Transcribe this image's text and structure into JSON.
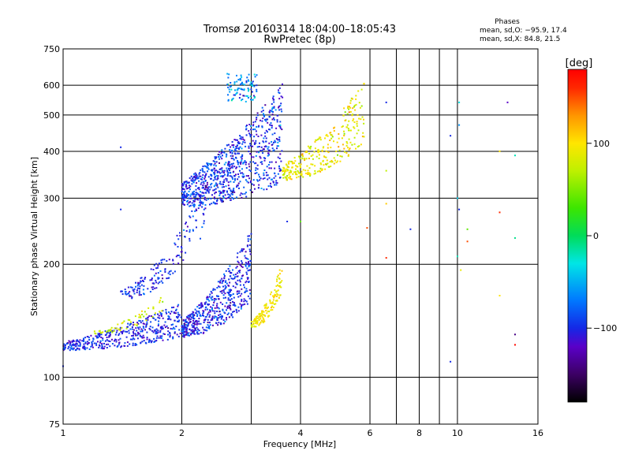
{
  "chart_data": {
    "type": "scatter",
    "title": "Tromsø 20160314 18:04:00–18:05:43",
    "subtitle": "RwPretec (8p)",
    "xlabel": "Frequency [MHz]",
    "ylabel": "Stationary phase Virtual Height [km]",
    "x_scale": "log",
    "y_scale": "log",
    "xlim": [
      1,
      16
    ],
    "ylim": [
      75,
      750
    ],
    "x_ticks": [
      1,
      2,
      4,
      6,
      8,
      10,
      16
    ],
    "y_ticks": [
      75,
      100,
      200,
      300,
      400,
      500,
      600,
      750
    ],
    "x_grid": [
      1,
      2,
      3,
      4,
      6,
      7,
      8,
      9,
      10,
      16
    ],
    "y_grid": [
      75,
      100,
      200,
      300,
      400,
      500,
      600,
      750
    ],
    "phase_info": {
      "title": "Phases",
      "line_o": "mean, sd,O: −95.9, 17.4",
      "line_x": "mean, sd,X:  84.8, 21.5"
    },
    "colorbar": {
      "label": "[deg]",
      "range": [
        -180,
        180
      ],
      "ticks": [
        100,
        0,
        -100
      ],
      "tick_labels": [
        "100",
        "0",
        "−100"
      ]
    },
    "clusters": [
      {
        "f_range": [
          1.0,
          2.0
        ],
        "h_base": [
          118,
          128
        ],
        "h_spread": 1.18,
        "phase": -100,
        "phase_sd": 15,
        "n": 420,
        "shape": "rise"
      },
      {
        "f_range": [
          2.0,
          3.0
        ],
        "h_base": [
          128,
          160
        ],
        "h_spread": 1.4,
        "phase": -100,
        "phase_sd": 18,
        "n": 520,
        "shape": "rise"
      },
      {
        "f_range": [
          3.0,
          3.6
        ],
        "h_base": [
          135,
          170
        ],
        "h_spread": 1.15,
        "phase": 95,
        "phase_sd": 10,
        "n": 140,
        "shape": "rise"
      },
      {
        "f_range": [
          1.2,
          1.8
        ],
        "h_base": [
          130,
          150
        ],
        "h_spread": 1.08,
        "phase": 85,
        "phase_sd": 15,
        "n": 60,
        "shape": "rise"
      },
      {
        "f_range": [
          1.4,
          2.3
        ],
        "h_base": [
          160,
          245
        ],
        "h_spread": 1.25,
        "phase": -100,
        "phase_sd": 15,
        "n": 170,
        "shape": "rise"
      },
      {
        "f_range": [
          2.0,
          3.6
        ],
        "h_base": [
          285,
          330
        ],
        "h_spread": 1.6,
        "phase": -95,
        "phase_sd": 20,
        "n": 820,
        "shape": "rise"
      },
      {
        "f_range": [
          3.6,
          5.8
        ],
        "h_base": [
          335,
          420
        ],
        "h_spread": 1.35,
        "phase": 90,
        "phase_sd": 18,
        "n": 300,
        "shape": "rise"
      },
      {
        "f_range": [
          2.6,
          3.1
        ],
        "h_base": [
          540,
          640
        ],
        "h_spread": 1.05,
        "phase": -60,
        "phase_sd": 30,
        "n": 90,
        "shape": "flat"
      }
    ],
    "outliers": [
      {
        "f": 6.6,
        "h": 540,
        "phase": -100
      },
      {
        "f": 6.6,
        "h": 355,
        "phase": 70
      },
      {
        "f": 6.6,
        "h": 290,
        "phase": 110
      },
      {
        "f": 6.6,
        "h": 208,
        "phase": 160
      },
      {
        "f": 7.6,
        "h": 248,
        "phase": -100
      },
      {
        "f": 5.9,
        "h": 250,
        "phase": 150
      },
      {
        "f": 9.6,
        "h": 440,
        "phase": -100
      },
      {
        "f": 10.1,
        "h": 540,
        "phase": -30
      },
      {
        "f": 10.1,
        "h": 470,
        "phase": -60
      },
      {
        "f": 10.0,
        "h": 300,
        "phase": -40
      },
      {
        "f": 10.1,
        "h": 280,
        "phase": -100
      },
      {
        "f": 10.0,
        "h": 210,
        "phase": -20
      },
      {
        "f": 10.2,
        "h": 193,
        "phase": 90
      },
      {
        "f": 9.6,
        "h": 110,
        "phase": -100
      },
      {
        "f": 10.6,
        "h": 248,
        "phase": 40
      },
      {
        "f": 10.6,
        "h": 230,
        "phase": 150
      },
      {
        "f": 12.8,
        "h": 400,
        "phase": 100
      },
      {
        "f": 12.8,
        "h": 275,
        "phase": 160
      },
      {
        "f": 12.8,
        "h": 165,
        "phase": 100
      },
      {
        "f": 13.4,
        "h": 540,
        "phase": -120
      },
      {
        "f": 14.0,
        "h": 390,
        "phase": -20
      },
      {
        "f": 14.0,
        "h": 235,
        "phase": -10
      },
      {
        "f": 14.0,
        "h": 130,
        "phase": -140
      },
      {
        "f": 14.0,
        "h": 122,
        "phase": 175
      },
      {
        "f": 1.4,
        "h": 410,
        "phase": -100
      },
      {
        "f": 1.4,
        "h": 280,
        "phase": -100
      },
      {
        "f": 4.0,
        "h": 260,
        "phase": 40
      },
      {
        "f": 3.7,
        "h": 260,
        "phase": -100
      },
      {
        "f": 1.0,
        "h": 107,
        "phase": -100
      }
    ]
  }
}
